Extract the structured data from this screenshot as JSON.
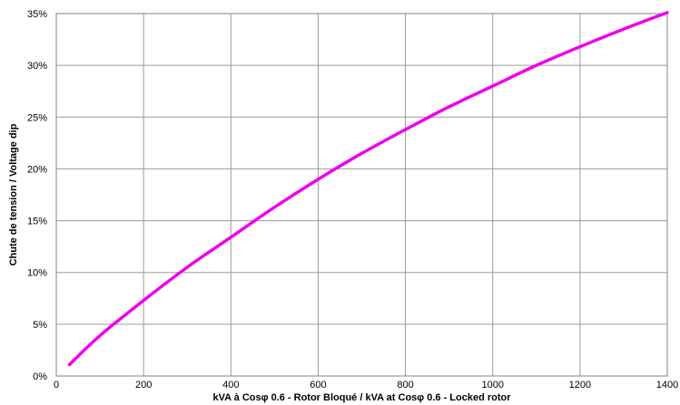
{
  "chart_data": {
    "type": "line",
    "title": "",
    "xlabel": "kVA à Cosφ 0.6 - Rotor Bloqué / kVA at Cosφ 0.6 - Locked rotor",
    "ylabel": "Chute de tension / Voltage dip",
    "xlim": [
      0,
      1400
    ],
    "ylim": [
      0,
      35
    ],
    "x_ticks": [
      "0",
      "200",
      "400",
      "600",
      "800",
      "1000",
      "1200",
      "1400"
    ],
    "y_ticks": [
      "0%",
      "5%",
      "10%",
      "15%",
      "20%",
      "25%",
      "30%",
      "35%"
    ],
    "grid": true,
    "legend": "none",
    "series": [
      {
        "color": "#ee00ee",
        "x": [
          30,
          100,
          200,
          300,
          400,
          500,
          600,
          700,
          800,
          900,
          1000,
          1100,
          1200,
          1300,
          1400
        ],
        "y": [
          1.1,
          3.9,
          7.3,
          10.5,
          13.4,
          16.3,
          19.0,
          21.5,
          23.8,
          26.0,
          28.0,
          30.0,
          31.8,
          33.5,
          35.1
        ]
      }
    ]
  }
}
